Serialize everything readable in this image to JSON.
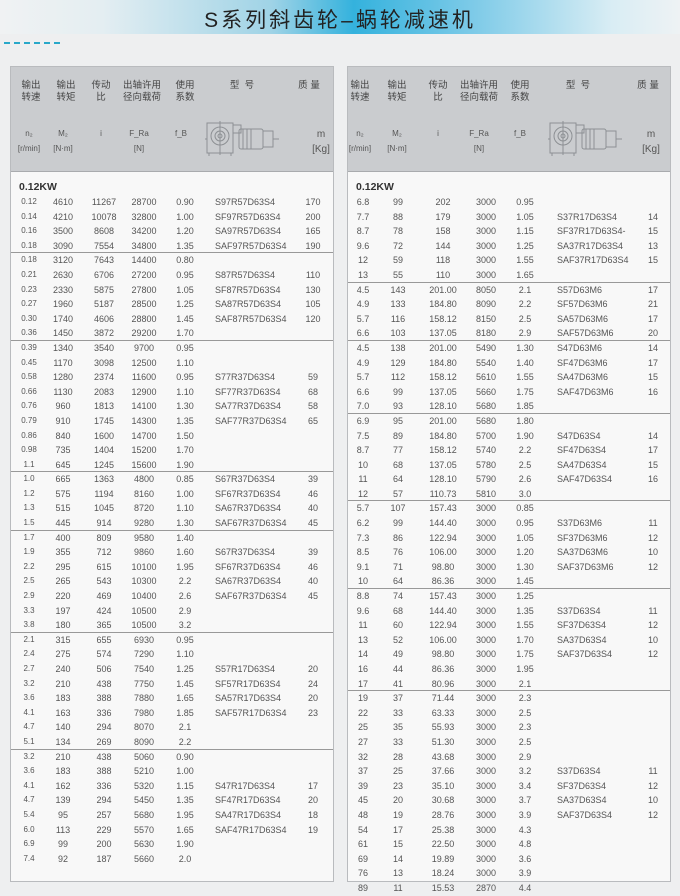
{
  "title": "S系列斜齿轮–蜗轮减速机",
  "header": {
    "labels": [
      "输出\n转速",
      "输出\n转矩",
      "传动\n比",
      "出轴许用\n径向载荷",
      "使用\n系数",
      "型  号",
      "质 量"
    ],
    "symbols": [
      "n₂",
      "M₂",
      "i",
      "F_Ra",
      "f_B",
      "m"
    ],
    "units": [
      "[r/min]",
      "[N·m]",
      "[N]",
      "[Kg]"
    ],
    "gearbox_icon": "helical-worm-gearmotor-drawing"
  },
  "power": "0.12KW",
  "left_groups": [
    [
      [
        "0.12",
        "4610",
        "11267",
        "28700",
        "0.90",
        "S97R57D63S4",
        "170"
      ],
      [
        "0.14",
        "4210",
        "10078",
        "32800",
        "1.00",
        "SF97R57D63S4",
        "200"
      ],
      [
        "0.16",
        "3500",
        "8608",
        "34200",
        "1.20",
        "SA97R57D63S4",
        "165"
      ],
      [
        "0.18",
        "3090",
        "7554",
        "34800",
        "1.35",
        "SAF97R57D63S4",
        "190"
      ]
    ],
    [
      [
        "0.18",
        "3120",
        "7643",
        "14400",
        "0.80",
        "",
        ""
      ],
      [
        "0.21",
        "2630",
        "6706",
        "27200",
        "0.95",
        "S87R57D63S4",
        "110"
      ],
      [
        "0.23",
        "2330",
        "5875",
        "27800",
        "1.05",
        "SF87R57D63S4",
        "130"
      ],
      [
        "0.27",
        "1960",
        "5187",
        "28500",
        "1.25",
        "SA87R57D63S4",
        "105"
      ],
      [
        "0.30",
        "1740",
        "4606",
        "28800",
        "1.45",
        "SAF87R57D63S4",
        "120"
      ],
      [
        "0.36",
        "1450",
        "3872",
        "29200",
        "1.70",
        "",
        ""
      ]
    ],
    [
      [
        "0.39",
        "1340",
        "3540",
        "9700",
        "0.95",
        "",
        ""
      ],
      [
        "0.45",
        "1170",
        "3098",
        "12500",
        "1.10",
        "",
        ""
      ],
      [
        "0.58",
        "1280",
        "2374",
        "11600",
        "0.95",
        "S77R37D63S4",
        "59"
      ],
      [
        "0.66",
        "1130",
        "2083",
        "12900",
        "1.10",
        "SF77R37D63S4",
        "68"
      ],
      [
        "0.76",
        "960",
        "1813",
        "14100",
        "1.30",
        "SA77R37D63S4",
        "58"
      ],
      [
        "0.79",
        "910",
        "1745",
        "14300",
        "1.35",
        "SAF77R37D63S4",
        "65"
      ],
      [
        "0.86",
        "840",
        "1600",
        "14700",
        "1.50",
        "",
        ""
      ],
      [
        "0.98",
        "735",
        "1404",
        "15200",
        "1.70",
        "",
        ""
      ],
      [
        "1.1",
        "645",
        "1245",
        "15600",
        "1.90",
        "",
        ""
      ]
    ],
    [
      [
        "1.0",
        "665",
        "1363",
        "4800",
        "0.85",
        "S67R37D63S4",
        "39"
      ],
      [
        "1.2",
        "575",
        "1194",
        "8160",
        "1.00",
        "SF67R37D63S4",
        "46"
      ],
      [
        "1.3",
        "515",
        "1045",
        "8720",
        "1.10",
        "SA67R37D63S4",
        "40"
      ],
      [
        "1.5",
        "445",
        "914",
        "9280",
        "1.30",
        "SAF67R37D63S4",
        "45"
      ]
    ],
    [
      [
        "1.7",
        "400",
        "809",
        "9580",
        "1.40",
        "",
        ""
      ],
      [
        "1.9",
        "355",
        "712",
        "9860",
        "1.60",
        "S67R37D63S4",
        "39"
      ],
      [
        "2.2",
        "295",
        "615",
        "10100",
        "1.95",
        "SF67R37D63S4",
        "46"
      ],
      [
        "2.5",
        "265",
        "543",
        "10300",
        "2.2",
        "SA67R37D63S4",
        "40"
      ],
      [
        "2.9",
        "220",
        "469",
        "10400",
        "2.6",
        "SAF67R37D63S4",
        "45"
      ],
      [
        "3.3",
        "197",
        "424",
        "10500",
        "2.9",
        "",
        ""
      ],
      [
        "3.8",
        "180",
        "365",
        "10500",
        "3.2",
        "",
        ""
      ]
    ],
    [
      [
        "2.1",
        "315",
        "655",
        "6930",
        "0.95",
        "",
        ""
      ],
      [
        "2.4",
        "275",
        "574",
        "7290",
        "1.10",
        "",
        ""
      ],
      [
        "2.7",
        "240",
        "506",
        "7540",
        "1.25",
        "S57R17D63S4",
        "20"
      ],
      [
        "3.2",
        "210",
        "438",
        "7750",
        "1.45",
        "SF57R17D63S4",
        "24"
      ],
      [
        "3.6",
        "183",
        "388",
        "7880",
        "1.65",
        "SA57R17D63S4",
        "20"
      ],
      [
        "4.1",
        "163",
        "336",
        "7980",
        "1.85",
        "SAF57R17D63S4",
        "23"
      ],
      [
        "4.7",
        "140",
        "294",
        "8070",
        "2.1",
        "",
        ""
      ],
      [
        "5.1",
        "134",
        "269",
        "8090",
        "2.2",
        "",
        ""
      ]
    ],
    [
      [
        "3.2",
        "210",
        "438",
        "5060",
        "0.90",
        "",
        ""
      ],
      [
        "3.6",
        "183",
        "388",
        "5210",
        "1.00",
        "",
        ""
      ],
      [
        "4.1",
        "162",
        "336",
        "5320",
        "1.15",
        "S47R17D63S4",
        "17"
      ],
      [
        "4.7",
        "139",
        "294",
        "5450",
        "1.35",
        "SF47R17D63S4",
        "20"
      ],
      [
        "5.4",
        "95",
        "257",
        "5680",
        "1.95",
        "SA47R17D63S4",
        "18"
      ],
      [
        "6.0",
        "113",
        "229",
        "5570",
        "1.65",
        "SAF47R17D63S4",
        "19"
      ],
      [
        "6.9",
        "99",
        "200",
        "5630",
        "1.90",
        "",
        ""
      ],
      [
        "7.4",
        "92",
        "187",
        "5660",
        "2.0",
        "",
        ""
      ]
    ]
  ],
  "right_groups": [
    [
      [
        "6.8",
        "99",
        "202",
        "3000",
        "0.95",
        "",
        ""
      ],
      [
        "7.7",
        "88",
        "179",
        "3000",
        "1.05",
        "S37R17D63S4",
        "14"
      ],
      [
        "8.7",
        "78",
        "158",
        "3000",
        "1.15",
        "SF37R17D63S4-",
        "15"
      ],
      [
        "9.6",
        "72",
        "144",
        "3000",
        "1.25",
        "SA37R17D63S4",
        "13"
      ],
      [
        "12",
        "59",
        "118",
        "3000",
        "1.55",
        "SAF37R17D63S4",
        "15"
      ],
      [
        "13",
        "55",
        "110",
        "3000",
        "1.65",
        "",
        ""
      ]
    ],
    [
      [
        "4.5",
        "143",
        "201.00",
        "8050",
        "2.1",
        "S57D63M6",
        "17"
      ],
      [
        "4.9",
        "133",
        "184.80",
        "8090",
        "2.2",
        "SF57D63M6",
        "21"
      ],
      [
        "5.7",
        "116",
        "158.12",
        "8150",
        "2.5",
        "SA57D63M6",
        "17"
      ],
      [
        "6.6",
        "103",
        "137.05",
        "8180",
        "2.9",
        "SAF57D63M6",
        "20"
      ]
    ],
    [
      [
        "4.5",
        "138",
        "201.00",
        "5490",
        "1.30",
        "S47D63M6",
        "14"
      ],
      [
        "4.9",
        "129",
        "184.80",
        "5540",
        "1.40",
        "SF47D63M6",
        "17"
      ],
      [
        "5.7",
        "112",
        "158.12",
        "5610",
        "1.55",
        "SA47D63M6",
        "15"
      ],
      [
        "6.6",
        "99",
        "137.05",
        "5660",
        "1.75",
        "SAF47D63M6",
        "16"
      ],
      [
        "7.0",
        "93",
        "128.10",
        "5680",
        "1.85",
        "",
        ""
      ]
    ],
    [
      [
        "6.9",
        "95",
        "201.00",
        "5680",
        "1.80",
        "",
        ""
      ],
      [
        "7.5",
        "89",
        "184.80",
        "5700",
        "1.90",
        "S47D63S4",
        "14"
      ],
      [
        "8.7",
        "77",
        "158.12",
        "5740",
        "2.2",
        "SF47D63S4",
        "17"
      ],
      [
        "10",
        "68",
        "137.05",
        "5780",
        "2.5",
        "SA47D63S4",
        "15"
      ],
      [
        "11",
        "64",
        "128.10",
        "5790",
        "2.6",
        "SAF47D63S4",
        "16"
      ],
      [
        "12",
        "57",
        "110.73",
        "5810",
        "3.0",
        "",
        ""
      ]
    ],
    [
      [
        "5.7",
        "107",
        "157.43",
        "3000",
        "0.85",
        "",
        ""
      ],
      [
        "6.2",
        "99",
        "144.40",
        "3000",
        "0.95",
        "S37D63M6",
        "11"
      ],
      [
        "7.3",
        "86",
        "122.94",
        "3000",
        "1.05",
        "SF37D63M6",
        "12"
      ],
      [
        "8.5",
        "76",
        "106.00",
        "3000",
        "1.20",
        "SA37D63M6",
        "10"
      ],
      [
        "9.1",
        "71",
        "98.80",
        "3000",
        "1.30",
        "SAF37D63M6",
        "12"
      ],
      [
        "10",
        "64",
        "86.36",
        "3000",
        "1.45",
        "",
        ""
      ]
    ],
    [
      [
        "8.8",
        "74",
        "157.43",
        "3000",
        "1.25",
        "",
        ""
      ],
      [
        "9.6",
        "68",
        "144.40",
        "3000",
        "1.35",
        "S37D63S4",
        "11"
      ],
      [
        "11",
        "60",
        "122.94",
        "3000",
        "1.55",
        "SF37D63S4",
        "12"
      ],
      [
        "13",
        "52",
        "106.00",
        "3000",
        "1.70",
        "SA37D63S4",
        "10"
      ],
      [
        "14",
        "49",
        "98.80",
        "3000",
        "1.75",
        "SAF37D63S4",
        "12"
      ],
      [
        "16",
        "44",
        "86.36",
        "3000",
        "1.95",
        "",
        ""
      ],
      [
        "17",
        "41",
        "80.96",
        "3000",
        "2.1",
        "",
        ""
      ]
    ],
    [
      [
        "19",
        "37",
        "71.44",
        "3000",
        "2.3",
        "",
        ""
      ],
      [
        "22",
        "33",
        "63.33",
        "3000",
        "2.5",
        "",
        ""
      ],
      [
        "25",
        "35",
        "55.93",
        "3000",
        "2.3",
        "",
        ""
      ],
      [
        "27",
        "33",
        "51.30",
        "3000",
        "2.5",
        "",
        ""
      ],
      [
        "32",
        "28",
        "43.68",
        "3000",
        "2.9",
        "",
        ""
      ],
      [
        "37",
        "25",
        "37.66",
        "3000",
        "3.2",
        "S37D63S4",
        "11"
      ],
      [
        "39",
        "23",
        "35.10",
        "3000",
        "3.4",
        "SF37D63S4",
        "12"
      ],
      [
        "45",
        "20",
        "30.68",
        "3000",
        "3.7",
        "SA37D63S4",
        "10"
      ],
      [
        "48",
        "19",
        "28.76",
        "3000",
        "3.9",
        "SAF37D63S4",
        "12"
      ],
      [
        "54",
        "17",
        "25.38",
        "3000",
        "4.3",
        "",
        ""
      ],
      [
        "61",
        "15",
        "22.50",
        "3000",
        "4.8",
        "",
        ""
      ],
      [
        "69",
        "14",
        "19.89",
        "3000",
        "3.6",
        "",
        ""
      ],
      [
        "76",
        "13",
        "18.24",
        "3000",
        "3.9",
        "",
        ""
      ],
      [
        "89",
        "11",
        "15.53",
        "2870",
        "4.4",
        "",
        ""
      ]
    ]
  ]
}
